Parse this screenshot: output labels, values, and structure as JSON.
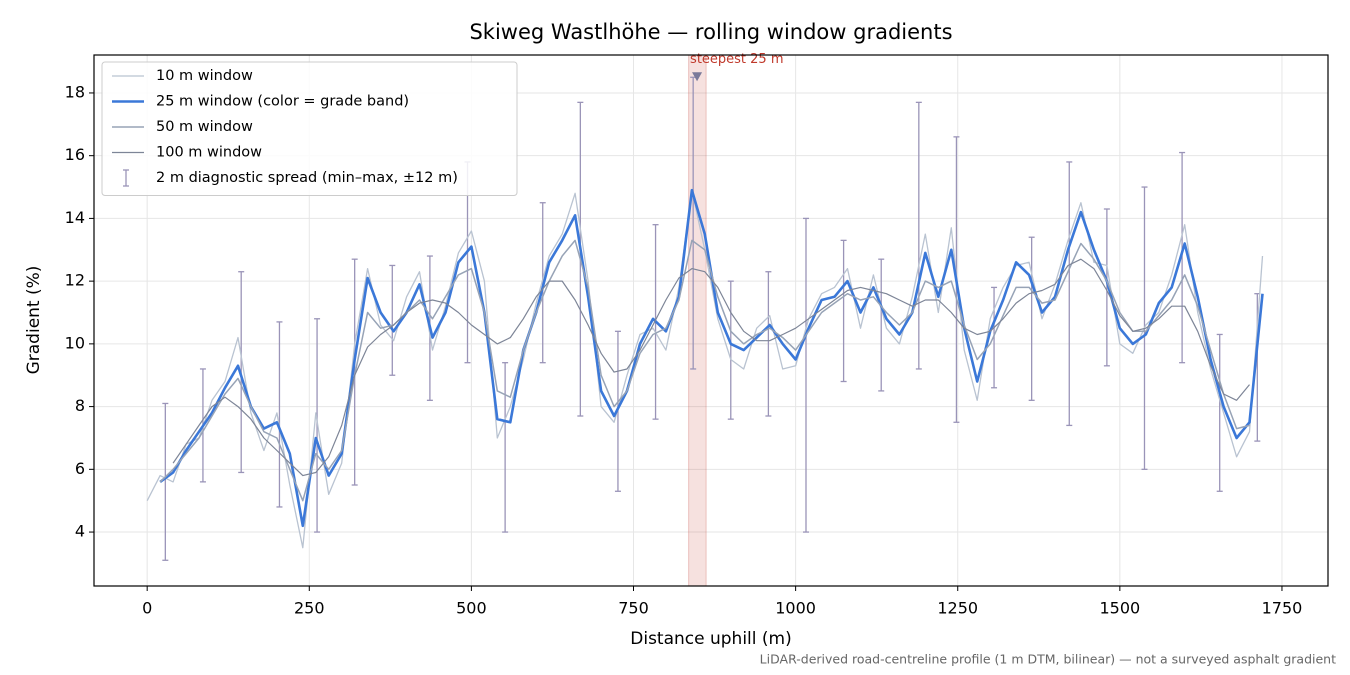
{
  "chart_data": {
    "type": "line",
    "title": "Skiweg Wastlhöhe — rolling window gradients",
    "xlabel": "Distance uphill (m)",
    "ylabel": "Gradient (%)",
    "footnote": "LiDAR-derived road-centreline profile (1 m DTM, bilinear) — not a surveyed asphalt gradient",
    "xlim": [
      -82,
      1821
    ],
    "ylim": [
      2.28,
      19.21
    ],
    "xticks": [
      0,
      250,
      500,
      750,
      1000,
      1250,
      1500,
      1750
    ],
    "yticks": [
      4,
      6,
      8,
      10,
      12,
      14,
      16,
      18
    ],
    "grid": true,
    "legend": "upper left",
    "x": [
      0,
      20,
      40,
      60,
      80,
      100,
      120,
      140,
      160,
      180,
      200,
      220,
      240,
      260,
      280,
      300,
      320,
      340,
      360,
      380,
      400,
      420,
      440,
      460,
      480,
      500,
      520,
      540,
      560,
      580,
      600,
      620,
      640,
      660,
      680,
      700,
      720,
      740,
      760,
      780,
      800,
      820,
      840,
      860,
      880,
      900,
      920,
      940,
      960,
      980,
      1000,
      1020,
      1040,
      1060,
      1080,
      1100,
      1120,
      1140,
      1160,
      1180,
      1200,
      1220,
      1240,
      1260,
      1280,
      1300,
      1320,
      1340,
      1360,
      1380,
      1400,
      1420,
      1440,
      1460,
      1480,
      1500,
      1520,
      1540,
      1560,
      1580,
      1600,
      1620,
      1640,
      1660,
      1680,
      1700,
      1720
    ],
    "series": [
      {
        "name": "10 m window",
        "color": "#b9c3d1",
        "width": 1.3,
        "values": [
          5.0,
          5.8,
          5.6,
          6.8,
          7.0,
          8.2,
          8.8,
          10.2,
          7.8,
          6.6,
          7.8,
          5.5,
          3.5,
          7.8,
          5.2,
          6.2,
          10.0,
          12.4,
          10.6,
          10.1,
          11.5,
          12.3,
          9.8,
          11.2,
          12.9,
          13.6,
          12.0,
          7.0,
          8.0,
          9.5,
          11.3,
          12.8,
          13.5,
          14.8,
          12.0,
          8.0,
          7.5,
          9.0,
          10.3,
          10.5,
          9.8,
          11.8,
          14.9,
          13.0,
          10.8,
          9.5,
          9.2,
          10.5,
          10.9,
          9.2,
          9.3,
          10.8,
          11.6,
          11.8,
          12.4,
          10.5,
          12.2,
          10.5,
          10.0,
          11.5,
          13.5,
          11.0,
          13.7,
          9.8,
          8.2,
          10.8,
          11.8,
          12.5,
          12.6,
          10.8,
          11.9,
          13.3,
          14.5,
          12.6,
          12.5,
          10.0,
          9.7,
          10.6,
          11.0,
          12.2,
          13.8,
          11.0,
          9.2,
          7.8,
          6.4,
          7.2,
          12.8
        ]
      },
      {
        "name": "25 m window (color = grade band)",
        "color": "#3b78d8",
        "width": 2.6,
        "values": [
          null,
          5.6,
          5.9,
          6.6,
          7.2,
          7.8,
          8.6,
          9.3,
          8.0,
          7.3,
          7.5,
          6.5,
          4.2,
          7.0,
          5.8,
          6.5,
          9.5,
          12.1,
          11.0,
          10.4,
          11.0,
          11.9,
          10.2,
          11.0,
          12.6,
          13.1,
          11.0,
          7.6,
          7.5,
          9.8,
          11.0,
          12.6,
          13.3,
          14.1,
          11.5,
          8.5,
          7.7,
          8.5,
          10.0,
          10.8,
          10.4,
          11.5,
          14.9,
          13.5,
          11.0,
          10.0,
          9.8,
          10.2,
          10.6,
          10.0,
          9.5,
          10.5,
          11.4,
          11.5,
          12.0,
          11.0,
          11.8,
          10.8,
          10.3,
          11.0,
          12.9,
          11.5,
          13.0,
          10.5,
          8.8,
          10.4,
          11.4,
          12.6,
          12.2,
          11.0,
          11.5,
          13.0,
          14.2,
          13.0,
          12.0,
          10.5,
          10.0,
          10.3,
          11.3,
          11.8,
          13.2,
          11.5,
          9.5,
          8.0,
          7.0,
          7.5,
          11.6
        ]
      },
      {
        "name": "50 m window",
        "color": "#97a3b6",
        "width": 1.5,
        "values": [
          null,
          5.6,
          6.0,
          6.5,
          7.0,
          7.7,
          8.4,
          8.9,
          8.0,
          7.2,
          7.0,
          6.0,
          5.0,
          6.5,
          6.0,
          6.6,
          9.0,
          11.0,
          10.5,
          10.6,
          11.0,
          11.4,
          10.8,
          11.5,
          12.2,
          12.4,
          11.0,
          8.5,
          8.3,
          9.8,
          11.0,
          12.0,
          12.8,
          13.3,
          11.8,
          9.0,
          8.0,
          8.5,
          9.7,
          10.3,
          10.5,
          11.4,
          13.3,
          13.0,
          11.5,
          10.4,
          10.0,
          10.3,
          10.5,
          10.2,
          9.8,
          10.4,
          11.0,
          11.3,
          11.6,
          11.4,
          11.5,
          11.0,
          10.6,
          11.0,
          12.0,
          11.8,
          12.0,
          10.6,
          9.5,
          10.0,
          10.9,
          11.8,
          11.8,
          11.3,
          11.4,
          12.3,
          13.2,
          12.7,
          12.0,
          11.0,
          10.4,
          10.4,
          10.9,
          11.4,
          12.2,
          11.2,
          9.8,
          8.4,
          7.3,
          7.4,
          null
        ]
      },
      {
        "name": "100 m window",
        "color": "#7d8597",
        "width": 1.2,
        "values": [
          null,
          null,
          6.2,
          6.8,
          7.4,
          8.0,
          8.3,
          8.0,
          7.6,
          7.0,
          6.6,
          6.2,
          5.8,
          5.9,
          6.4,
          7.4,
          9.0,
          9.9,
          10.3,
          10.6,
          11.0,
          11.3,
          11.4,
          11.3,
          11.0,
          10.6,
          10.3,
          10.0,
          10.2,
          10.8,
          11.5,
          12.0,
          12.0,
          11.4,
          10.6,
          9.7,
          9.1,
          9.2,
          9.8,
          10.6,
          11.4,
          12.1,
          12.4,
          12.3,
          11.8,
          11.0,
          10.4,
          10.1,
          10.1,
          10.3,
          10.5,
          10.8,
          11.1,
          11.4,
          11.7,
          11.8,
          11.7,
          11.6,
          11.4,
          11.2,
          11.4,
          11.4,
          11.0,
          10.5,
          10.3,
          10.4,
          10.8,
          11.3,
          11.6,
          11.7,
          11.9,
          12.5,
          12.7,
          12.4,
          11.7,
          10.9,
          10.4,
          10.5,
          10.8,
          11.2,
          11.2,
          10.4,
          9.3,
          8.4,
          8.2,
          8.7,
          null
        ]
      }
    ],
    "spread": {
      "name": "2 m diagnostic spread (min–max, ±12 m)",
      "color": "#9a94b8",
      "x": [
        28,
        86,
        145,
        204,
        262,
        320,
        378,
        436,
        494,
        552,
        610,
        668,
        726,
        784,
        842,
        900,
        958,
        1016,
        1074,
        1132,
        1190,
        1248,
        1306,
        1364,
        1422,
        1480,
        1538,
        1596,
        1654,
        1712
      ],
      "low": [
        3.1,
        5.6,
        5.9,
        4.8,
        4.0,
        5.5,
        9.0,
        8.2,
        9.4,
        4.0,
        9.4,
        7.7,
        5.3,
        7.6,
        9.2,
        7.6,
        7.7,
        4.0,
        8.8,
        8.5,
        9.2,
        7.5,
        8.6,
        8.2,
        7.4,
        9.3,
        6.0,
        9.4,
        5.3,
        6.9
      ],
      "high": [
        8.1,
        9.2,
        12.3,
        10.7,
        10.8,
        12.7,
        12.5,
        12.8,
        15.8,
        9.4,
        14.5,
        17.7,
        10.4,
        13.8,
        18.5,
        12.0,
        12.3,
        14.0,
        13.3,
        12.7,
        17.7,
        16.6,
        11.8,
        13.4,
        15.8,
        14.3,
        15.0,
        16.1,
        10.3,
        11.6
      ]
    },
    "annotation": {
      "text": "steepest 25 m",
      "x": 848,
      "y": 18.5,
      "span": [
        835,
        862
      ],
      "color": "#c0392b"
    }
  }
}
